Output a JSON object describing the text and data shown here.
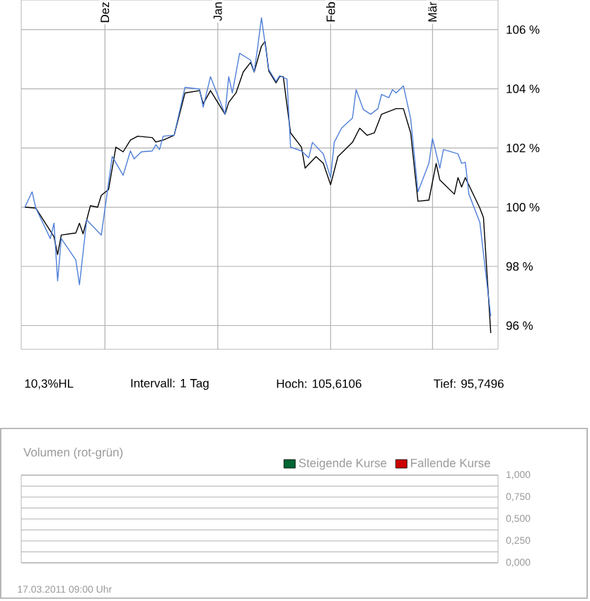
{
  "chart_data": [
    {
      "type": "line",
      "xlim": [
        "2010-11-08",
        "2011-03-19"
      ],
      "ylim": [
        95.2,
        107
      ],
      "xticks": [
        {
          "value": "2010-12-01",
          "label": "Dez"
        },
        {
          "value": "2011-01-01",
          "label": "Jan"
        },
        {
          "value": "2011-02-01",
          "label": "Feb"
        },
        {
          "value": "2011-03-01",
          "label": "Mär"
        }
      ],
      "yticks": [
        {
          "value": 96,
          "label": "96 %"
        },
        {
          "value": 98,
          "label": "98 %"
        },
        {
          "value": 100,
          "label": "100 %"
        },
        {
          "value": 102,
          "label": "102 %"
        },
        {
          "value": 104,
          "label": "104 %"
        },
        {
          "value": 106,
          "label": "106 %"
        }
      ],
      "grid": true,
      "annotations": [
        "10,3%HL",
        "Intervall: 1 Tag",
        "Hoch: 105,6106",
        "Tief: 95,7496"
      ],
      "series": [
        {
          "color": "#000000",
          "x": [
            "2010-11-09",
            "2010-11-12",
            "2010-11-16",
            "2010-11-17",
            "2010-11-18",
            "2010-11-19",
            "2010-11-23",
            "2010-11-24",
            "2010-11-25",
            "2010-11-27",
            "2010-11-29",
            "2010-11-30",
            "2010-12-02",
            "2010-12-04",
            "2010-12-06",
            "2010-12-08",
            "2010-12-10",
            "2010-12-14",
            "2010-12-15",
            "2010-12-17",
            "2010-12-20",
            "2010-12-23",
            "2010-12-27",
            "2010-12-28",
            "2010-12-30",
            "2011-01-03",
            "2011-01-04",
            "2011-01-06",
            "2011-01-08",
            "2011-01-10",
            "2011-01-11",
            "2011-01-13",
            "2011-01-14",
            "2011-01-15",
            "2011-01-17",
            "2011-01-18",
            "2011-01-19",
            "2011-01-21",
            "2011-01-24",
            "2011-01-25",
            "2011-01-28",
            "2011-01-30",
            "2011-02-01",
            "2011-02-03",
            "2011-02-07",
            "2011-02-09",
            "2011-02-11",
            "2011-02-13",
            "2011-02-15",
            "2011-02-19",
            "2011-02-21",
            "2011-02-23",
            "2011-02-25",
            "2011-02-28",
            "2011-03-02",
            "2011-03-03",
            "2011-03-07",
            "2011-03-08",
            "2011-03-09",
            "2011-03-10",
            "2011-03-14",
            "2011-03-15",
            "2011-03-17"
          ],
          "values": [
            100.0,
            99.97,
            99.2,
            99.0,
            98.4,
            99.06,
            99.13,
            99.46,
            99.1,
            100.05,
            100.0,
            100.4,
            100.6,
            102.03,
            101.87,
            102.27,
            102.4,
            102.35,
            102.2,
            102.27,
            102.43,
            103.86,
            103.94,
            103.49,
            103.94,
            103.14,
            103.54,
            103.86,
            104.57,
            104.89,
            104.57,
            105.44,
            105.6,
            104.6,
            104.2,
            104.41,
            104.41,
            102.51,
            102.03,
            101.32,
            101.71,
            101.48,
            100.76,
            101.71,
            102.19,
            102.67,
            102.43,
            102.51,
            103.14,
            103.33,
            103.33,
            102.51,
            100.2,
            100.24,
            101.48,
            100.92,
            100.44,
            101.0,
            100.68,
            101.0,
            99.97,
            99.65,
            95.75
          ]
        },
        {
          "color": "#4f7fd8",
          "x": [
            "2010-11-09",
            "2010-11-11",
            "2010-11-12",
            "2010-11-16",
            "2010-11-17",
            "2010-11-18",
            "2010-11-19",
            "2010-11-23",
            "2010-11-24",
            "2010-11-26",
            "2010-11-30",
            "2010-12-03",
            "2010-12-06",
            "2010-12-08",
            "2010-12-09",
            "2010-12-11",
            "2010-12-14",
            "2010-12-15",
            "2010-12-16",
            "2010-12-17",
            "2010-12-20",
            "2010-12-23",
            "2010-12-27",
            "2010-12-28",
            "2010-12-30",
            "2011-01-03",
            "2011-01-04",
            "2011-01-05",
            "2011-01-07",
            "2011-01-10",
            "2011-01-11",
            "2011-01-12",
            "2011-01-13",
            "2011-01-15",
            "2011-01-17",
            "2011-01-18",
            "2011-01-20",
            "2011-01-21",
            "2011-01-24",
            "2011-01-26",
            "2011-01-27",
            "2011-01-30",
            "2011-02-01",
            "2011-02-02",
            "2011-02-04",
            "2011-02-07",
            "2011-02-08",
            "2011-02-10",
            "2011-02-12",
            "2011-02-14",
            "2011-02-15",
            "2011-02-17",
            "2011-02-18",
            "2011-02-19",
            "2011-02-21",
            "2011-02-23",
            "2011-02-25",
            "2011-02-28",
            "2011-03-01",
            "2011-03-03",
            "2011-03-04",
            "2011-03-08",
            "2011-03-09",
            "2011-03-10",
            "2011-03-11",
            "2011-03-14",
            "2011-03-17"
          ],
          "values": [
            100.0,
            100.52,
            99.97,
            98.94,
            99.46,
            97.51,
            98.94,
            98.22,
            97.38,
            99.57,
            99.06,
            101.71,
            101.08,
            101.9,
            101.63,
            101.87,
            101.9,
            102.11,
            101.95,
            102.4,
            102.43,
            104.05,
            103.99,
            103.38,
            104.41,
            103.14,
            104.41,
            103.86,
            105.2,
            104.97,
            104.57,
            105.44,
            106.4,
            104.65,
            104.25,
            104.44,
            104.33,
            102.03,
            101.9,
            101.67,
            102.19,
            101.8,
            101.0,
            102.19,
            102.67,
            103.01,
            103.97,
            103.3,
            103.14,
            103.33,
            103.81,
            103.7,
            103.97,
            103.86,
            104.1,
            102.99,
            100.52,
            101.48,
            102.32,
            101.32,
            101.95,
            101.8,
            101.48,
            101.52,
            100.44,
            99.49,
            96.32
          ]
        }
      ]
    },
    {
      "type": "bar",
      "title": "Volumen (rot-grün)",
      "ylim": [
        0,
        1
      ],
      "yticks": [
        {
          "value": 0,
          "label": "0,000"
        },
        {
          "value": 0.125,
          "label": null
        },
        {
          "value": 0.25,
          "label": "0,250"
        },
        {
          "value": 0.375,
          "label": null
        },
        {
          "value": 0.5,
          "label": "0,500"
        },
        {
          "value": 0.625,
          "label": null
        },
        {
          "value": 0.75,
          "label": "0,750"
        },
        {
          "value": 0.875,
          "label": null
        },
        {
          "value": 1,
          "label": "1,000"
        }
      ],
      "tick_labels": "y",
      "grid": "y",
      "legend": "top right",
      "annotations": [
        "17.03.2011 09:00 Uhr"
      ],
      "series": [
        {
          "name": "Steigende Kurse",
          "color": "#006633"
        },
        {
          "name": "Fallende Kurse",
          "color": "#cc0000"
        }
      ]
    }
  ]
}
